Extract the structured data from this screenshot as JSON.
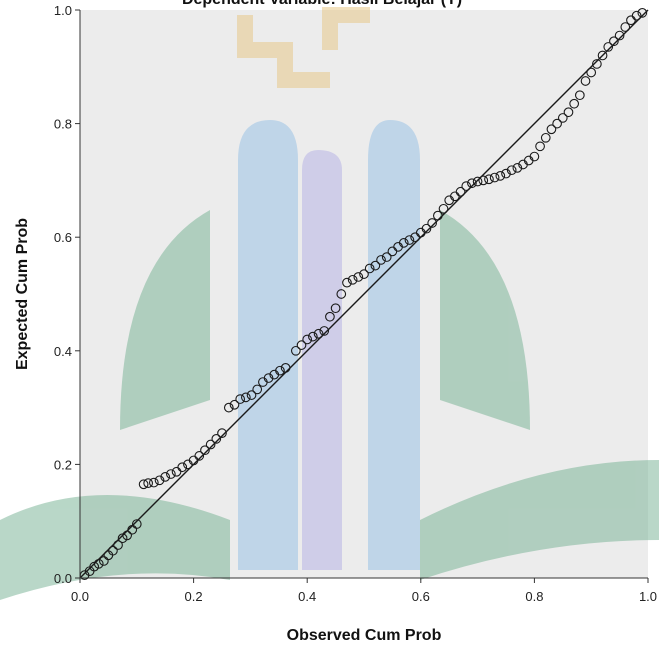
{
  "chart_data": {
    "type": "scatter",
    "title": "Dependent Variable: Hasil Belajar (Y)",
    "xlabel": "Observed Cum Prob",
    "ylabel": "Expected Cum Prob",
    "xlim": [
      0.0,
      1.0
    ],
    "ylim": [
      0.0,
      1.0
    ],
    "xticks": [
      "0.0",
      "0.2",
      "0.4",
      "0.6",
      "0.8",
      "1.0"
    ],
    "yticks": [
      "0.0",
      "0.2",
      "0.4",
      "0.6",
      "0.8",
      "1.0"
    ],
    "grid": false,
    "reference_line": {
      "from": [
        0,
        0
      ],
      "to": [
        1,
        1
      ]
    },
    "series": [
      {
        "points": [
          [
            0.008,
            0.005
          ],
          [
            0.017,
            0.012
          ],
          [
            0.025,
            0.02
          ],
          [
            0.033,
            0.025
          ],
          [
            0.042,
            0.03
          ],
          [
            0.05,
            0.04
          ],
          [
            0.058,
            0.048
          ],
          [
            0.067,
            0.058
          ],
          [
            0.075,
            0.07
          ],
          [
            0.083,
            0.075
          ],
          [
            0.092,
            0.085
          ],
          [
            0.1,
            0.095
          ],
          [
            0.112,
            0.165
          ],
          [
            0.12,
            0.167
          ],
          [
            0.13,
            0.168
          ],
          [
            0.14,
            0.172
          ],
          [
            0.15,
            0.178
          ],
          [
            0.16,
            0.183
          ],
          [
            0.17,
            0.187
          ],
          [
            0.18,
            0.195
          ],
          [
            0.19,
            0.2
          ],
          [
            0.2,
            0.207
          ],
          [
            0.21,
            0.215
          ],
          [
            0.22,
            0.225
          ],
          [
            0.23,
            0.235
          ],
          [
            0.24,
            0.245
          ],
          [
            0.25,
            0.255
          ],
          [
            0.262,
            0.3
          ],
          [
            0.272,
            0.305
          ],
          [
            0.282,
            0.315
          ],
          [
            0.292,
            0.318
          ],
          [
            0.302,
            0.322
          ],
          [
            0.312,
            0.332
          ],
          [
            0.322,
            0.345
          ],
          [
            0.332,
            0.352
          ],
          [
            0.342,
            0.358
          ],
          [
            0.352,
            0.365
          ],
          [
            0.362,
            0.37
          ],
          [
            0.38,
            0.4
          ],
          [
            0.39,
            0.41
          ],
          [
            0.4,
            0.42
          ],
          [
            0.41,
            0.425
          ],
          [
            0.42,
            0.43
          ],
          [
            0.43,
            0.435
          ],
          [
            0.44,
            0.46
          ],
          [
            0.45,
            0.475
          ],
          [
            0.46,
            0.5
          ],
          [
            0.47,
            0.52
          ],
          [
            0.48,
            0.525
          ],
          [
            0.49,
            0.53
          ],
          [
            0.5,
            0.535
          ],
          [
            0.51,
            0.545
          ],
          [
            0.52,
            0.55
          ],
          [
            0.53,
            0.56
          ],
          [
            0.54,
            0.565
          ],
          [
            0.55,
            0.575
          ],
          [
            0.56,
            0.583
          ],
          [
            0.57,
            0.59
          ],
          [
            0.58,
            0.595
          ],
          [
            0.59,
            0.6
          ],
          [
            0.6,
            0.608
          ],
          [
            0.61,
            0.615
          ],
          [
            0.62,
            0.625
          ],
          [
            0.63,
            0.638
          ],
          [
            0.64,
            0.65
          ],
          [
            0.65,
            0.665
          ],
          [
            0.66,
            0.672
          ],
          [
            0.67,
            0.68
          ],
          [
            0.68,
            0.69
          ],
          [
            0.69,
            0.695
          ],
          [
            0.7,
            0.698
          ],
          [
            0.71,
            0.7
          ],
          [
            0.72,
            0.702
          ],
          [
            0.73,
            0.705
          ],
          [
            0.74,
            0.708
          ],
          [
            0.75,
            0.712
          ],
          [
            0.76,
            0.718
          ],
          [
            0.77,
            0.722
          ],
          [
            0.78,
            0.728
          ],
          [
            0.79,
            0.735
          ],
          [
            0.8,
            0.742
          ],
          [
            0.81,
            0.76
          ],
          [
            0.82,
            0.775
          ],
          [
            0.83,
            0.79
          ],
          [
            0.84,
            0.8
          ],
          [
            0.85,
            0.81
          ],
          [
            0.86,
            0.82
          ],
          [
            0.87,
            0.835
          ],
          [
            0.88,
            0.85
          ],
          [
            0.89,
            0.875
          ],
          [
            0.9,
            0.89
          ],
          [
            0.91,
            0.905
          ],
          [
            0.92,
            0.92
          ],
          [
            0.93,
            0.935
          ],
          [
            0.94,
            0.945
          ],
          [
            0.95,
            0.955
          ],
          [
            0.96,
            0.97
          ],
          [
            0.97,
            0.982
          ],
          [
            0.98,
            0.99
          ],
          [
            0.99,
            0.995
          ]
        ]
      }
    ]
  },
  "colors": {
    "plot_bg": "#ececec",
    "marker": "#1a1a1a",
    "line": "#1a1a1a",
    "watermark_green": "#7fb79a",
    "watermark_blue": "#9bc3e6",
    "watermark_gold": "#e8c98a"
  }
}
